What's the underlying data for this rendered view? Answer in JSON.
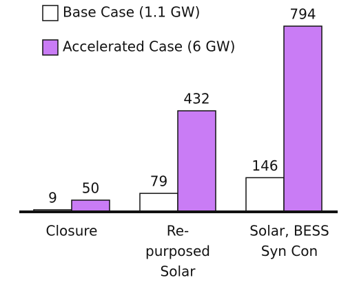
{
  "chart_data": {
    "type": "bar",
    "categories": [
      [
        "Closure"
      ],
      [
        "Re-",
        "purposed",
        "Solar"
      ],
      [
        "Solar, BESS",
        "Syn Con"
      ]
    ],
    "series": [
      {
        "name": "Base Case (1.1 GW)",
        "color": "#ffffff",
        "values": [
          9,
          79,
          146
        ]
      },
      {
        "name": "Accelerated Case (6 GW)",
        "color": "#c97cf5",
        "values": [
          50,
          432,
          794
        ]
      }
    ]
  }
}
